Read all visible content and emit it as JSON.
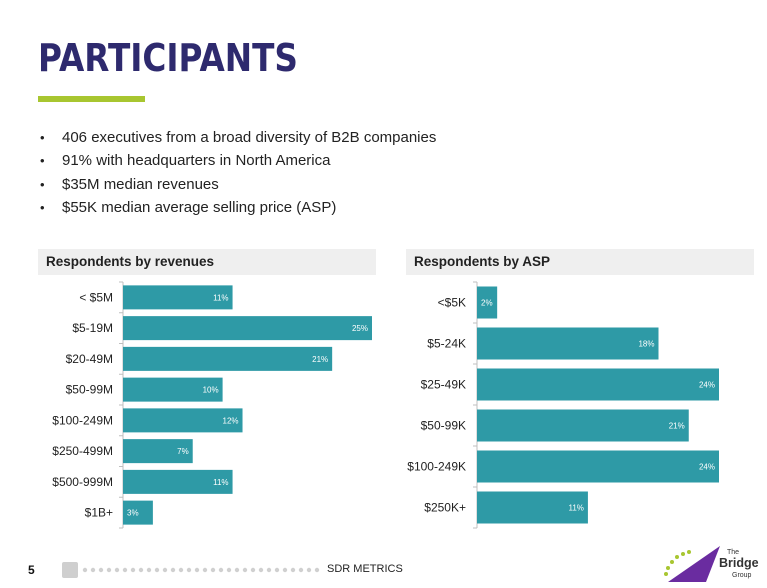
{
  "title": "PARTICIPANTS",
  "bullets": [
    "406 executives from a broad diversity of B2B companies",
    "91% with headquarters in North America",
    "$35M median revenues",
    "$55K median average selling price (ASP)"
  ],
  "chart_data": [
    {
      "type": "bar",
      "orientation": "horizontal",
      "title": "Respondents by revenues",
      "categories": [
        "< $5M",
        "$5-19M",
        "$20-49M",
        "$50-99M",
        "$100-249M",
        "$250-499M",
        "$500-999M",
        "$1B+"
      ],
      "values": [
        11,
        25,
        21,
        10,
        12,
        7,
        11,
        3
      ],
      "labels": [
        "11%",
        "25%",
        "21%",
        "10%",
        "12%",
        "7%",
        "11%",
        "3%"
      ],
      "xlim": [
        0,
        25
      ],
      "unit": "%"
    },
    {
      "type": "bar",
      "orientation": "horizontal",
      "title": "Respondents by ASP",
      "categories": [
        "<$5K",
        "$5-24K",
        "$25-49K",
        "$50-99K",
        "$100-249K",
        "$250K+"
      ],
      "values": [
        2,
        18,
        24,
        21,
        24,
        11
      ],
      "labels": [
        "2%",
        "18%",
        "24%",
        "21%",
        "24%",
        "11%"
      ],
      "xlim": [
        0,
        24
      ],
      "unit": "%"
    }
  ],
  "footer": {
    "page_number": "5",
    "label": "SDR METRICS"
  },
  "logo": {
    "the": "The",
    "bridge": "Bridge",
    "group": "Group"
  },
  "colors": {
    "title": "#2e2a6e",
    "accent": "#a8c630",
    "bar": "#2e9aa6",
    "logo_purple": "#6a2ca0"
  }
}
